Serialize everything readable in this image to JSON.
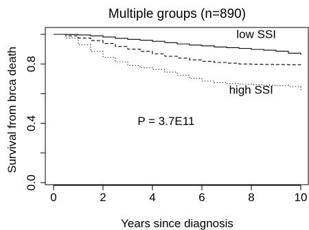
{
  "chart_data": {
    "type": "line",
    "title": "Multiple groups (n=890)",
    "xlabel": "Years since diagnosis",
    "ylabel": "Survival from brca death",
    "xlim": [
      0,
      10
    ],
    "ylim": [
      0,
      1
    ],
    "x_ticks": [
      0,
      2,
      4,
      6,
      8,
      10
    ],
    "x_tick_labels": [
      "0",
      "2",
      "4",
      "6",
      "8",
      "10"
    ],
    "y_ticks": [
      0.0,
      0.4,
      0.8
    ],
    "y_tick_labels": [
      "0.0",
      "0.4",
      "0.8"
    ],
    "grid": false,
    "annotations": [
      {
        "text": "low SSI",
        "x": 7.4,
        "y": 0.975
      },
      {
        "text": "high SSI",
        "x": 7.1,
        "y": 0.6
      },
      {
        "text": "P = 3.7E11",
        "x": 3.4,
        "y": 0.39
      }
    ],
    "series": [
      {
        "line_style": "solid",
        "x": [
          0,
          0.5,
          1.0,
          1.5,
          2.0,
          2.5,
          3.0,
          3.5,
          4.0,
          4.5,
          5.0,
          5.5,
          6.0,
          6.5,
          7.0,
          7.5,
          8.0,
          8.5,
          9.0,
          9.5,
          10.0
        ],
        "y": [
          1.0,
          0.999,
          0.996,
          0.99,
          0.982,
          0.973,
          0.966,
          0.96,
          0.953,
          0.944,
          0.935,
          0.928,
          0.922,
          0.915,
          0.91,
          0.905,
          0.898,
          0.893,
          0.886,
          0.873,
          0.862
        ]
      },
      {
        "line_style": "dashed",
        "x": [
          0,
          0.5,
          1.0,
          1.5,
          2.0,
          2.5,
          3.0,
          3.5,
          4.0,
          4.5,
          5.0,
          5.5,
          6.0,
          6.5,
          7.0,
          7.5,
          8.0,
          8.5,
          9.0,
          9.5,
          10.0
        ],
        "y": [
          1.0,
          0.99,
          0.975,
          0.958,
          0.938,
          0.918,
          0.9,
          0.885,
          0.868,
          0.852,
          0.84,
          0.828,
          0.818,
          0.81,
          0.805,
          0.8,
          0.798,
          0.797,
          0.796,
          0.795,
          0.794
        ]
      },
      {
        "line_style": "dotted",
        "x": [
          0,
          0.5,
          1.0,
          1.5,
          2.0,
          2.5,
          3.0,
          3.5,
          4.0,
          4.5,
          5.0,
          5.5,
          6.0,
          6.5,
          7.0,
          7.5,
          8.0,
          8.5,
          9.0,
          9.5,
          10.0
        ],
        "y": [
          1.0,
          0.975,
          0.93,
          0.885,
          0.845,
          0.815,
          0.79,
          0.775,
          0.763,
          0.745,
          0.723,
          0.703,
          0.685,
          0.675,
          0.668,
          0.663,
          0.66,
          0.657,
          0.654,
          0.648,
          0.625
        ]
      }
    ]
  }
}
